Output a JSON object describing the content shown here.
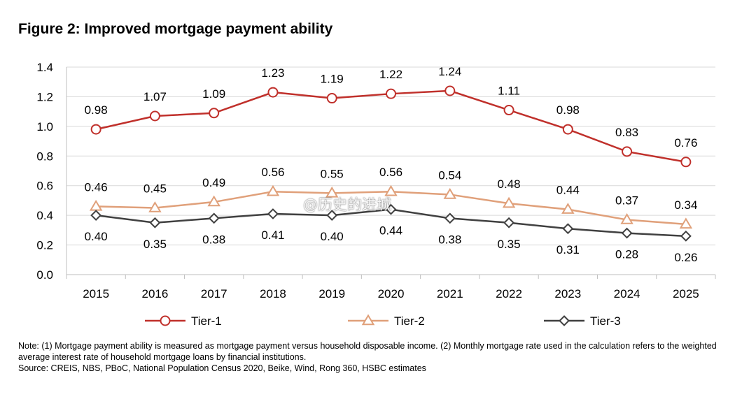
{
  "title": "Figure 2: Improved mortgage payment ability",
  "chart_data": {
    "type": "line",
    "title": "Figure 2: Improved mortgage payment ability",
    "x": [
      "2015",
      "2016",
      "2017",
      "2018",
      "2019",
      "2020",
      "2021",
      "2022",
      "2023",
      "2024",
      "2025"
    ],
    "ylim": [
      0,
      1.4
    ],
    "yticks": [
      "0.0",
      "0.2",
      "0.4",
      "0.6",
      "0.8",
      "1.0",
      "1.2",
      "1.4"
    ],
    "grid": "horizontal",
    "legend_position": "bottom",
    "series": [
      {
        "name": "Tier-1",
        "values": [
          0.98,
          1.07,
          1.09,
          1.23,
          1.19,
          1.22,
          1.24,
          1.11,
          0.98,
          0.83,
          0.76
        ],
        "labels": [
          "0.98",
          "1.07",
          "1.09",
          "1.23",
          "1.19",
          "1.22",
          "1.24",
          "1.11",
          "0.98",
          "0.83",
          "0.76"
        ],
        "color": "#c0302b",
        "marker": "circle"
      },
      {
        "name": "Tier-2",
        "values": [
          0.46,
          0.45,
          0.49,
          0.56,
          0.55,
          0.56,
          0.54,
          0.48,
          0.44,
          0.37,
          0.34
        ],
        "labels": [
          "0.46",
          "0.45",
          "0.49",
          "0.56",
          "0.55",
          "0.56",
          "0.54",
          "0.48",
          "0.44",
          "0.37",
          "0.34"
        ],
        "color": "#e0a07a",
        "marker": "triangle"
      },
      {
        "name": "Tier-3",
        "values": [
          0.4,
          0.35,
          0.38,
          0.41,
          0.4,
          0.44,
          0.38,
          0.35,
          0.31,
          0.28,
          0.26
        ],
        "labels": [
          "0.40",
          "0.35",
          "0.38",
          "0.41",
          "0.40",
          "0.44",
          "0.38",
          "0.35",
          "0.31",
          "0.28",
          "0.26"
        ],
        "color": "#404040",
        "marker": "diamond"
      }
    ]
  },
  "notes": {
    "note": "Note: (1) Mortgage payment ability is measured as mortgage payment versus household disposable income. (2) Monthly mortgage rate used in the calculation refers to the weighted average interest rate of household mortgage loans by financial institutions.",
    "source": "Source: CREIS, NBS, PBoC, National Population Census 2020, Beike, Wind, Rong 360, HSBC estimates"
  },
  "watermark": "@历史的进城"
}
